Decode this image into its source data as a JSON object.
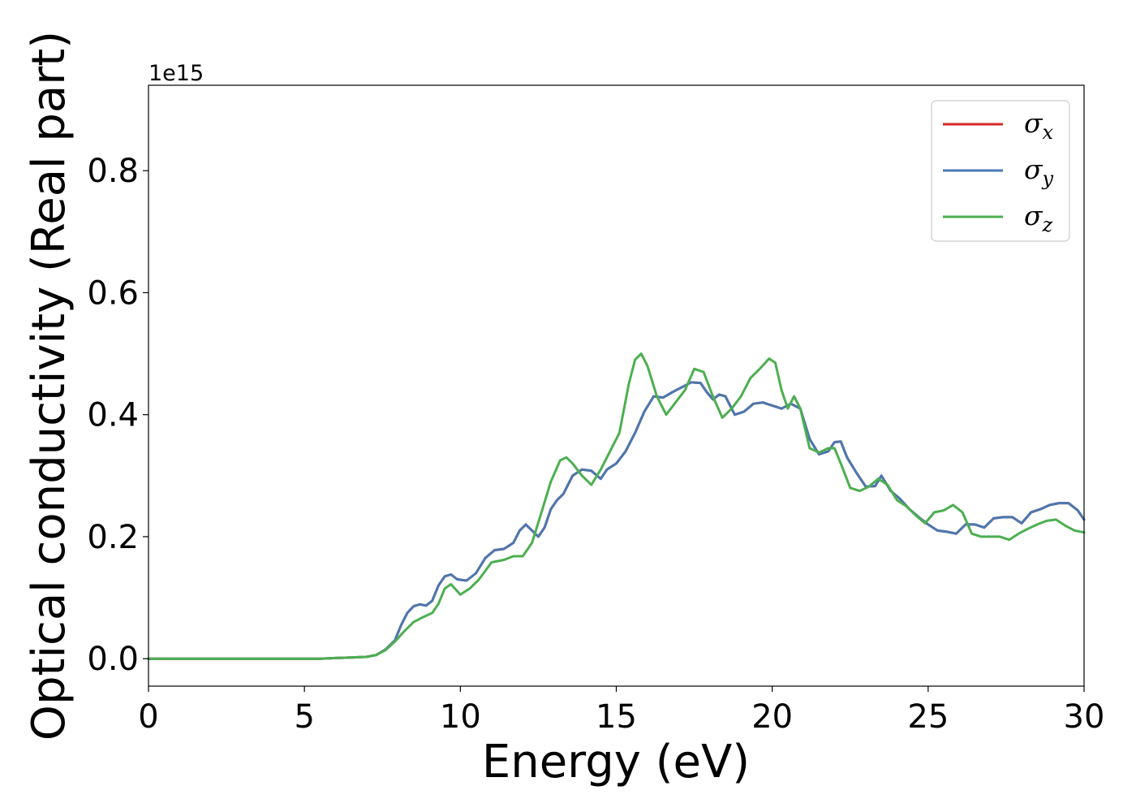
{
  "chart_data": {
    "type": "line",
    "title": "",
    "xlabel": "Energy (eV)",
    "ylabel": "Optical conductivity (Real part)",
    "y_offset_label": "1e15",
    "xlim": [
      0,
      30
    ],
    "ylim": [
      -0.045,
      0.94
    ],
    "x_ticks": [
      0,
      5,
      10,
      15,
      20,
      25,
      30
    ],
    "y_ticks": [
      0.0,
      0.2,
      0.4,
      0.6,
      0.8
    ],
    "grid": false,
    "legend_position": "top-right",
    "series": [
      {
        "name": "σx",
        "symbol": "σ",
        "subscript": "x",
        "color": "#d62728",
        "x": [
          0,
          1,
          2,
          3,
          4,
          5,
          5.5,
          6,
          6.5,
          7,
          7.3,
          7.6,
          7.9,
          8.1,
          8.3,
          8.5,
          8.7,
          8.9,
          9.1,
          9.3,
          9.5,
          9.7,
          9.9,
          10.2,
          10.5,
          10.8,
          11.1,
          11.4,
          11.7,
          11.9,
          12.1,
          12.3,
          12.5,
          12.7,
          12.9,
          13.1,
          13.3,
          13.6,
          13.9,
          14.2,
          14.5,
          14.7,
          15,
          15.3,
          15.6,
          15.9,
          16.2,
          16.5,
          16.8,
          17.1,
          17.4,
          17.7,
          17.9,
          18.1,
          18.3,
          18.5,
          18.8,
          19.1,
          19.4,
          19.7,
          20,
          20.3,
          20.6,
          20.9,
          21.2,
          21.5,
          21.8,
          22,
          22.2,
          22.4,
          22.7,
          23,
          23.3,
          23.5,
          23.8,
          24.1,
          24.4,
          24.7,
          25,
          25.3,
          25.6,
          25.9,
          26.2,
          26.5,
          26.8,
          27.1,
          27.4,
          27.7,
          28,
          28.3,
          28.6,
          28.9,
          29.2,
          29.5,
          29.8,
          30
        ],
        "y": [
          0,
          0,
          0,
          0,
          0,
          0,
          0,
          0.001,
          0.002,
          0.003,
          0.006,
          0.015,
          0.03,
          0.055,
          0.075,
          0.086,
          0.089,
          0.087,
          0.095,
          0.12,
          0.135,
          0.138,
          0.13,
          0.128,
          0.14,
          0.165,
          0.178,
          0.18,
          0.19,
          0.21,
          0.22,
          0.21,
          0.2,
          0.215,
          0.245,
          0.26,
          0.27,
          0.3,
          0.31,
          0.308,
          0.295,
          0.31,
          0.32,
          0.34,
          0.37,
          0.405,
          0.43,
          0.428,
          0.437,
          0.445,
          0.453,
          0.452,
          0.437,
          0.425,
          0.433,
          0.43,
          0.4,
          0.405,
          0.418,
          0.42,
          0.415,
          0.41,
          0.418,
          0.41,
          0.36,
          0.335,
          0.34,
          0.355,
          0.356,
          0.33,
          0.305,
          0.282,
          0.283,
          0.3,
          0.275,
          0.262,
          0.245,
          0.232,
          0.22,
          0.21,
          0.208,
          0.205,
          0.22,
          0.22,
          0.215,
          0.23,
          0.232,
          0.232,
          0.222,
          0.24,
          0.245,
          0.252,
          0.255,
          0.255,
          0.243,
          0.228
        ]
      },
      {
        "name": "σy",
        "symbol": "σ",
        "subscript": "y",
        "color": "#4a78b0",
        "x": [
          0,
          1,
          2,
          3,
          4,
          5,
          5.5,
          6,
          6.5,
          7,
          7.3,
          7.6,
          7.9,
          8.1,
          8.3,
          8.5,
          8.7,
          8.9,
          9.1,
          9.3,
          9.5,
          9.7,
          9.9,
          10.2,
          10.5,
          10.8,
          11.1,
          11.4,
          11.7,
          11.9,
          12.1,
          12.3,
          12.5,
          12.7,
          12.9,
          13.1,
          13.3,
          13.6,
          13.9,
          14.2,
          14.5,
          14.7,
          15,
          15.3,
          15.6,
          15.9,
          16.2,
          16.5,
          16.8,
          17.1,
          17.4,
          17.7,
          17.9,
          18.1,
          18.3,
          18.5,
          18.8,
          19.1,
          19.4,
          19.7,
          20,
          20.3,
          20.6,
          20.9,
          21.2,
          21.5,
          21.8,
          22,
          22.2,
          22.4,
          22.7,
          23,
          23.3,
          23.5,
          23.8,
          24.1,
          24.4,
          24.7,
          25,
          25.3,
          25.6,
          25.9,
          26.2,
          26.5,
          26.8,
          27.1,
          27.4,
          27.7,
          28,
          28.3,
          28.6,
          28.9,
          29.2,
          29.5,
          29.8,
          30
        ],
        "y": [
          0,
          0,
          0,
          0,
          0,
          0,
          0,
          0.001,
          0.002,
          0.003,
          0.006,
          0.015,
          0.03,
          0.055,
          0.075,
          0.086,
          0.089,
          0.087,
          0.095,
          0.12,
          0.135,
          0.138,
          0.13,
          0.128,
          0.14,
          0.165,
          0.178,
          0.18,
          0.19,
          0.21,
          0.22,
          0.21,
          0.2,
          0.215,
          0.245,
          0.26,
          0.27,
          0.3,
          0.31,
          0.308,
          0.295,
          0.31,
          0.32,
          0.34,
          0.37,
          0.405,
          0.43,
          0.428,
          0.437,
          0.445,
          0.453,
          0.452,
          0.437,
          0.425,
          0.433,
          0.43,
          0.4,
          0.405,
          0.418,
          0.42,
          0.415,
          0.41,
          0.418,
          0.41,
          0.36,
          0.335,
          0.34,
          0.355,
          0.356,
          0.33,
          0.305,
          0.282,
          0.283,
          0.3,
          0.275,
          0.262,
          0.245,
          0.232,
          0.22,
          0.21,
          0.208,
          0.205,
          0.22,
          0.22,
          0.215,
          0.23,
          0.232,
          0.232,
          0.222,
          0.24,
          0.245,
          0.252,
          0.255,
          0.255,
          0.243,
          0.228
        ]
      },
      {
        "name": "σz",
        "symbol": "σ",
        "subscript": "z",
        "color": "#4caf50",
        "x": [
          0,
          1,
          2,
          3,
          4,
          5,
          5.5,
          6,
          6.5,
          7,
          7.3,
          7.6,
          7.9,
          8.2,
          8.5,
          8.8,
          9.1,
          9.3,
          9.5,
          9.7,
          10,
          10.3,
          10.6,
          11,
          11.4,
          11.7,
          12,
          12.3,
          12.6,
          12.9,
          13.2,
          13.4,
          13.6,
          13.9,
          14.2,
          14.5,
          14.8,
          15.1,
          15.4,
          15.6,
          15.8,
          16,
          16.3,
          16.6,
          16.9,
          17.2,
          17.5,
          17.8,
          18.1,
          18.4,
          18.7,
          19,
          19.3,
          19.6,
          19.9,
          20.1,
          20.3,
          20.5,
          20.7,
          20.9,
          21.2,
          21.5,
          21.8,
          22,
          22.2,
          22.5,
          22.8,
          23.1,
          23.4,
          23.7,
          24,
          24.3,
          24.6,
          24.9,
          25.2,
          25.5,
          25.8,
          26.1,
          26.4,
          26.7,
          27,
          27.3,
          27.6,
          27.9,
          28.2,
          28.5,
          28.8,
          29.1,
          29.4,
          29.7,
          30
        ],
        "y": [
          0,
          0,
          0,
          0,
          0,
          0,
          0,
          0.001,
          0.002,
          0.003,
          0.006,
          0.014,
          0.028,
          0.045,
          0.06,
          0.068,
          0.075,
          0.09,
          0.115,
          0.122,
          0.105,
          0.115,
          0.13,
          0.158,
          0.162,
          0.168,
          0.168,
          0.19,
          0.24,
          0.29,
          0.325,
          0.33,
          0.32,
          0.3,
          0.285,
          0.31,
          0.34,
          0.37,
          0.45,
          0.49,
          0.5,
          0.48,
          0.43,
          0.4,
          0.42,
          0.44,
          0.475,
          0.47,
          0.43,
          0.395,
          0.41,
          0.43,
          0.46,
          0.475,
          0.492,
          0.485,
          0.44,
          0.41,
          0.43,
          0.41,
          0.345,
          0.338,
          0.345,
          0.345,
          0.32,
          0.28,
          0.275,
          0.282,
          0.295,
          0.285,
          0.26,
          0.25,
          0.235,
          0.222,
          0.24,
          0.243,
          0.252,
          0.24,
          0.205,
          0.2,
          0.2,
          0.2,
          0.195,
          0.205,
          0.213,
          0.22,
          0.226,
          0.228,
          0.218,
          0.21,
          0.207
        ]
      }
    ]
  }
}
